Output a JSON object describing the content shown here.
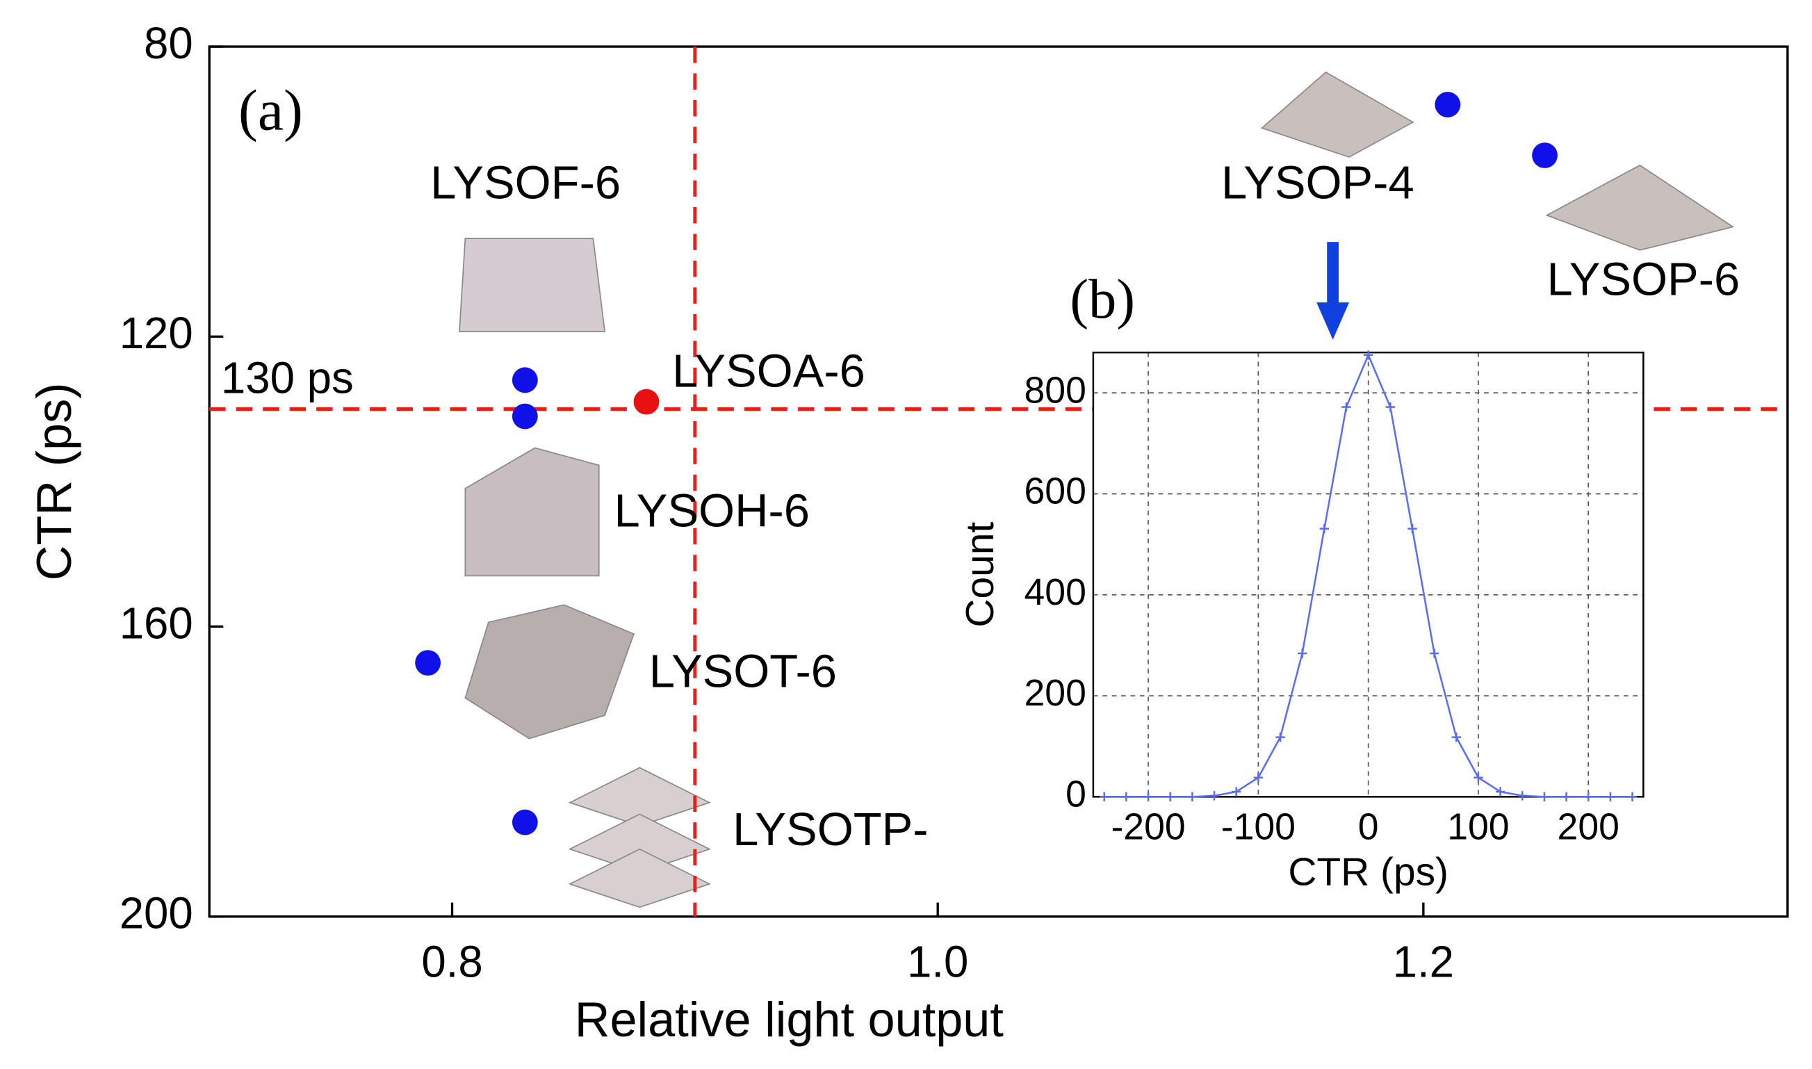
{
  "chart_data": [
    {
      "type": "scatter",
      "xlabel": "Relative light output",
      "ylabel": "CTR (ps)",
      "x": [
        1.21,
        1.25,
        0.83,
        0.88,
        0.83,
        0.79,
        0.83
      ],
      "values": [
        88,
        95,
        126,
        129,
        131,
        165,
        187
      ],
      "colors": [
        "#1010e8",
        "#1010e8",
        "#1010e8",
        "#e81010",
        "#1010e8",
        "#1010e8",
        "#1010e8"
      ],
      "point_labels": [
        "LYSOP-4",
        "LYSOP-6",
        "LYSOF-6",
        "LYSOA-6",
        "LYSOH-6",
        "LYSOT-6",
        "LYSOTP-"
      ],
      "xlim": [
        0.7,
        1.35
      ],
      "ylim": [
        80,
        200
      ],
      "y_inverted": true,
      "xticks": [
        0.8,
        {
          "value": 1.0,
          "label": "1.0"
        },
        1.2
      ],
      "yticks": [
        80,
        120,
        160,
        200
      ],
      "annotations": [
        "(a)",
        "130 ps"
      ],
      "reference_lines": {
        "y": 130,
        "x": 0.9,
        "color": "#e8201c"
      }
    },
    {
      "type": "line",
      "title": "(b)",
      "xlabel": "CTR (ps)",
      "ylabel": "Count",
      "x": [
        -240,
        -220,
        -200,
        -180,
        -160,
        -140,
        -120,
        -100,
        -80,
        -60,
        -40,
        -20,
        0,
        20,
        40,
        60,
        80,
        100,
        120,
        140,
        160,
        180,
        200,
        220,
        240
      ],
      "series": [
        {
          "color": "#5a6cf0",
          "values": [
            0,
            0,
            0,
            0,
            0,
            2,
            10,
            38,
            118,
            284,
            531,
            772,
            875,
            772,
            531,
            284,
            118,
            38,
            10,
            2,
            0,
            0,
            0,
            0,
            0
          ]
        }
      ],
      "xlim": [
        -250,
        250
      ],
      "ylim": [
        0,
        880
      ],
      "xticks": [
        -200,
        -100,
        0,
        100,
        200
      ],
      "yticks": [
        0,
        200,
        400,
        600,
        800
      ],
      "grid": true
    }
  ]
}
